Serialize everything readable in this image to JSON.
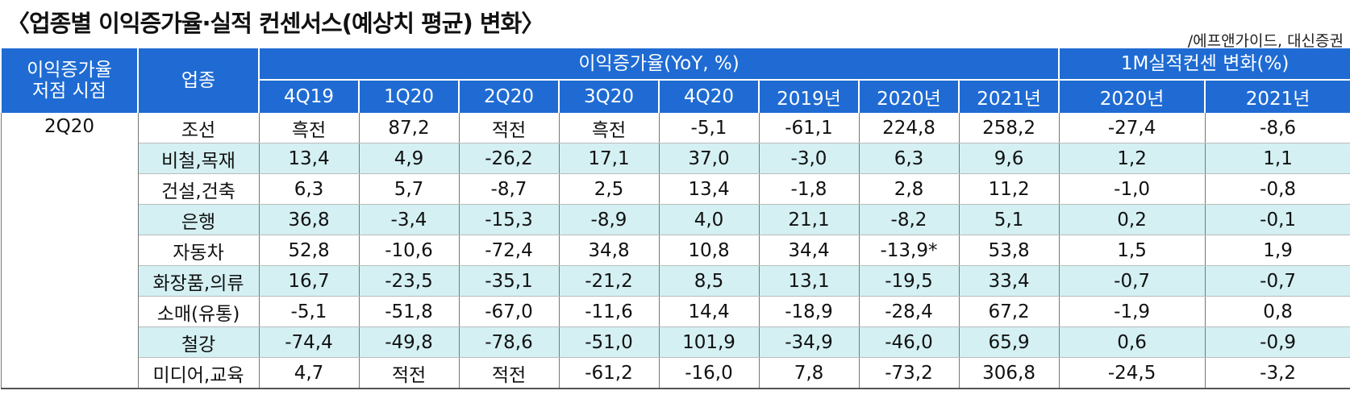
{
  "title": "〈업종별 이익증가율·실적 컨센서스(예상치 평균) 변화〉",
  "source": "/에프앤가이드, 대신증권",
  "table": {
    "header_groups": [
      {
        "lines": [
          "이익증가율",
          "저점 시점"
        ]
      },
      {
        "lines": [
          "업종"
        ]
      },
      {
        "lines": [
          "이익증가율(YoY, %)"
        ]
      },
      {
        "lines": [
          "1M실적컨센 변화(%)"
        ]
      }
    ],
    "columns": [
      "4Q19",
      "1Q20",
      "2Q20",
      "3Q20",
      "4Q20",
      "2019년",
      "2020년",
      "2021년",
      "2020년",
      "2021년"
    ],
    "period": "2Q20",
    "rows": [
      [
        "조선",
        "흑전",
        "87,2",
        "적전",
        "흑전",
        "-5,1",
        "-61,1",
        "224,8",
        "258,2",
        "-27,4",
        "-8,6"
      ],
      [
        "비철,목재",
        "13,4",
        "4,9",
        "-26,2",
        "17,1",
        "37,0",
        "-3,0",
        "6,3",
        "9,6",
        "1,2",
        "1,1"
      ],
      [
        "건설,건축",
        "6,3",
        "5,7",
        "-8,7",
        "2,5",
        "13,4",
        "-1,8",
        "2,8",
        "11,2",
        "-1,0",
        "-0,8"
      ],
      [
        "은행",
        "36,8",
        "-3,4",
        "-15,3",
        "-8,9",
        "4,0",
        "21,1",
        "-8,2",
        "5,1",
        "0,2",
        "-0,1"
      ],
      [
        "자동차",
        "52,8",
        "-10,6",
        "-72,4",
        "34,8",
        "10,8",
        "34,4",
        "-13,9*",
        "53,8",
        "1,5",
        "1,9"
      ],
      [
        "화장품,의류",
        "16,7",
        "-23,5",
        "-35,1",
        "-21,2",
        "8,5",
        "13,1",
        "-19,5",
        "33,4",
        "-0,7",
        "-0,7"
      ],
      [
        "소매(유통)",
        "-5,1",
        "-51,8",
        "-67,0",
        "-11,6",
        "14,4",
        "-18,9",
        "-28,4",
        "67,2",
        "-1,9",
        "0,8"
      ],
      [
        "철강",
        "-74,4",
        "-49,8",
        "-78,6",
        "-51,0",
        "101,9",
        "-34,9",
        "-46,0",
        "65,9",
        "0,6",
        "-0,9"
      ],
      [
        "미디어,교육",
        "4,7",
        "적전",
        "적전",
        "-61,2",
        "-16,0",
        "7,8",
        "-73,2",
        "306,8",
        "-24,5",
        "-3,2"
      ]
    ]
  }
}
